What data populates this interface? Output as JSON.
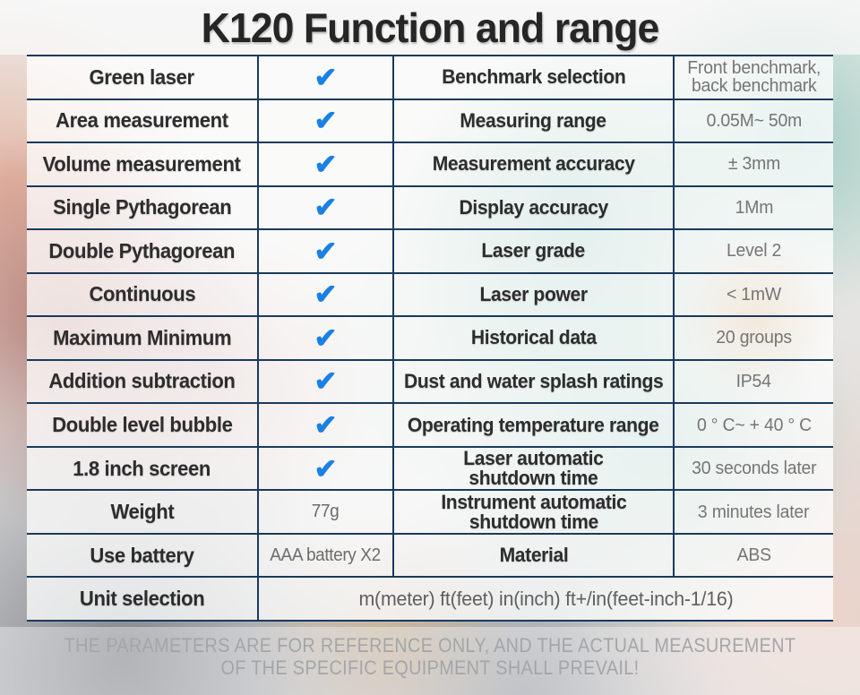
{
  "title": "K120 Function and range",
  "icons": {
    "check": "✔"
  },
  "rows": [
    {
      "feature": "Green laser",
      "spec": "Benchmark selection",
      "value": "Front benchmark,\nback benchmark"
    },
    {
      "feature": "Area measurement",
      "spec": "Measuring range",
      "value": "0.05M~ 50m"
    },
    {
      "feature": "Volume measurement",
      "spec": "Measurement accuracy",
      "value": "± 3mm"
    },
    {
      "feature": "Single Pythagorean",
      "spec": "Display accuracy",
      "value": "1Mm"
    },
    {
      "feature": "Double Pythagorean",
      "spec": "Laser grade",
      "value": "Level 2"
    },
    {
      "feature": "Continuous",
      "spec": "Laser power",
      "value": "< 1mW"
    },
    {
      "feature": "Maximum Minimum",
      "spec": "Historical data",
      "value": "20 groups"
    },
    {
      "feature": "Addition subtraction",
      "spec": "Dust and water splash ratings",
      "value": "IP54"
    },
    {
      "feature": "Double level bubble",
      "spec": "Operating temperature range",
      "value": "0 ° C~ + 40 ° C"
    },
    {
      "feature": "1.8 inch screen",
      "spec": "Laser automatic\nshutdown time",
      "value": "30 seconds later"
    },
    {
      "feature": "Weight",
      "feature_value": "77g",
      "spec": "Instrument automatic\nshutdown time",
      "value": "3 minutes later"
    },
    {
      "feature": "Use battery",
      "feature_value": "AAA battery X2",
      "spec": "Material",
      "value": "ABS"
    },
    {
      "feature": "Unit selection",
      "merged_value": "m(meter) ft(feet) in(inch) ft+/in(feet-inch-1/16)"
    }
  ],
  "disclaimer": "THE PARAMETERS ARE FOR REFERENCE ONLY, AND THE ACTUAL MEASUREMENT OF THE SPECIFIC EQUIPMENT SHALL PREVAIL!",
  "colors": {
    "navy": "#1a3a5c",
    "check_blue": "#1a80e4",
    "label_dark": "#2d2d2d",
    "value_gray": "#757575",
    "title_dark": "#262626",
    "disclaimer_gray": "#a3a6a8"
  }
}
